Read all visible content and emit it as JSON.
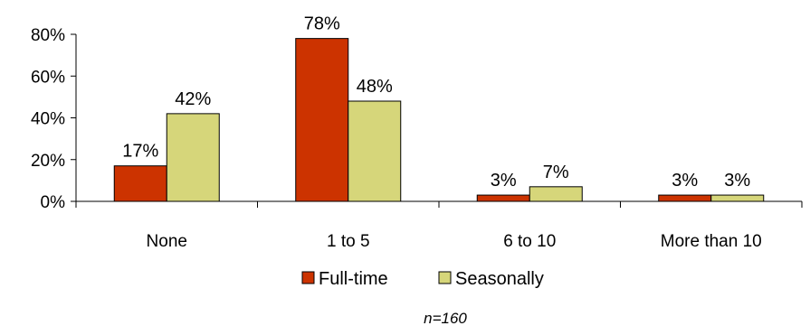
{
  "chart_data": {
    "type": "bar",
    "categories": [
      "None",
      "1 to 5",
      "6 to 10",
      "More than 10"
    ],
    "series": [
      {
        "name": "Full-time",
        "values": [
          17,
          78,
          3,
          3
        ],
        "labels": [
          "17%",
          "78%",
          "3%",
          "3%"
        ],
        "color": "#CC3300"
      },
      {
        "name": "Seasonally",
        "values": [
          42,
          48,
          7,
          3
        ],
        "labels": [
          "42%",
          "48%",
          "7%",
          "3%"
        ],
        "color": "#D6D67A"
      }
    ],
    "ylim": [
      0,
      80
    ],
    "yticks": [
      0,
      20,
      40,
      60,
      80
    ],
    "ytick_labels": [
      "0%",
      "20%",
      "40%",
      "60%",
      "80%"
    ],
    "grid": false,
    "legend_position": "bottom",
    "note": "n=160"
  }
}
